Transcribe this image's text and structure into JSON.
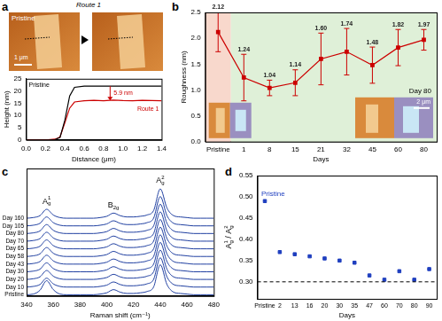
{
  "chart_data": [
    {
      "panel_label": "a",
      "type": "line",
      "image_arrow_label": "Route 1",
      "image_labels": [
        "Pristine"
      ],
      "scale_bar": "1 μm",
      "x": [
        0,
        0.1,
        0.2,
        0.3,
        0.35,
        0.4,
        0.45,
        0.5,
        0.6,
        0.7,
        0.8,
        0.9,
        1.0,
        1.1,
        1.2,
        1.3,
        1.4
      ],
      "series": [
        {
          "name": "Pristine",
          "color": "#000000",
          "values": [
            0,
            0,
            0,
            0.2,
            1,
            8,
            18,
            21.5,
            22,
            22,
            22,
            22,
            22,
            22,
            22,
            22,
            22
          ]
        },
        {
          "name": "Route 1",
          "color": "#cc0000",
          "values": [
            0,
            0,
            0,
            0.3,
            1.2,
            7,
            13,
            15.5,
            16,
            16.2,
            16,
            16.3,
            16.1,
            16,
            16.2,
            16.1,
            16
          ]
        }
      ],
      "x_label": "Distance (μm)",
      "y_label": "Height (nm)",
      "xlim": [
        0,
        1.4
      ],
      "xticks": [
        {
          "value": 0,
          "label": "0.0"
        },
        0.2,
        0.4,
        0.6,
        0.8,
        {
          "value": 1,
          "label": "1.0"
        },
        1.2,
        1.4
      ],
      "ylim": [
        0,
        25
      ],
      "yticks": [
        0,
        5,
        10,
        15,
        20,
        25
      ],
      "annotations": [
        {
          "text": "5.9 nm",
          "y_from": 22,
          "y_to": 16.1
        }
      ]
    },
    {
      "panel_label": "b",
      "type": "line",
      "categories": [
        "Pristine",
        "1",
        "8",
        "15",
        "21",
        "32",
        "45",
        "60",
        "80"
      ],
      "values": [
        2.12,
        1.24,
        1.04,
        1.14,
        1.6,
        1.74,
        1.48,
        1.82,
        1.97
      ],
      "value_labels": [
        "2.12",
        "1.24",
        "1.04",
        "1.14",
        "1.60",
        "1.74",
        "1.48",
        "1.82",
        "1.97"
      ],
      "errors": [
        0.38,
        0.45,
        0.15,
        0.25,
        0.5,
        0.45,
        0.35,
        0.35,
        0.2
      ],
      "color": "#cc0000",
      "marker": "square",
      "data_labels": true,
      "x_label": "Days",
      "y_label": "Roughness (nm)",
      "ylim": [
        0,
        2.5
      ],
      "yticks": [
        {
          "value": 0,
          "label": "0.0"
        },
        0.5,
        {
          "value": 1,
          "label": "1.0"
        },
        1.5,
        {
          "value": 2,
          "label": "2.0"
        },
        2.5
      ],
      "inset_label": "Day 80",
      "scale_bar": "2 μm"
    },
    {
      "panel_label": "c",
      "type": "line",
      "tick_labels": "x",
      "x": [
        340,
        345,
        350,
        355,
        360,
        365,
        370,
        375,
        380,
        385,
        390,
        395,
        400,
        405,
        410,
        415,
        420,
        425,
        430,
        435,
        440,
        445,
        450,
        455,
        460,
        465,
        470,
        475,
        480
      ],
      "series": [
        {
          "name": "Pristine",
          "color": "#1f3fa0",
          "values": [
            0.2,
            0.3,
            0.9,
            2.4,
            1.0,
            0.3,
            0.2,
            0.2,
            0.2,
            0.2,
            0.2,
            0.3,
            0.5,
            1.0,
            0.6,
            0.4,
            0.4,
            0.5,
            0.7,
            1.4,
            4.9,
            1.8,
            0.6,
            0.4,
            0.3,
            0.2,
            0.2,
            0.2,
            0.2
          ]
        },
        {
          "name": "Day 10",
          "color": "#1f3fa0",
          "values": [
            1.4,
            1.5,
            1.8,
            2.8,
            1.9,
            1.5,
            1.4,
            1.4,
            1.4,
            1.4,
            1.4,
            1.5,
            1.7,
            2.2,
            1.8,
            1.6,
            1.6,
            1.7,
            1.9,
            2.6,
            6.0,
            3.0,
            1.8,
            1.6,
            1.5,
            1.4,
            1.4,
            1.4,
            1.4
          ]
        },
        {
          "name": "Day 20",
          "color": "#1f3fa0",
          "values": [
            2.6,
            2.7,
            3.0,
            4.0,
            3.1,
            2.7,
            2.6,
            2.6,
            2.6,
            2.6,
            2.6,
            2.7,
            2.9,
            3.4,
            3.0,
            2.8,
            2.8,
            2.9,
            3.1,
            3.8,
            7.2,
            4.2,
            3.0,
            2.8,
            2.7,
            2.6,
            2.6,
            2.6,
            2.6
          ]
        },
        {
          "name": "Day 30",
          "color": "#1f3fa0",
          "values": [
            3.8,
            3.9,
            4.2,
            5.2,
            4.3,
            3.9,
            3.8,
            3.8,
            3.8,
            3.8,
            3.8,
            3.9,
            4.1,
            4.6,
            4.2,
            4.0,
            4.0,
            4.1,
            4.3,
            5.0,
            8.4,
            5.4,
            4.2,
            4.0,
            3.9,
            3.8,
            3.8,
            3.8,
            3.8
          ]
        },
        {
          "name": "Day 43",
          "color": "#1f3fa0",
          "values": [
            5.0,
            5.1,
            5.4,
            6.4,
            5.5,
            5.1,
            5.0,
            5.0,
            5.0,
            5.0,
            5.0,
            5.1,
            5.3,
            5.8,
            5.4,
            5.2,
            5.2,
            5.3,
            5.5,
            6.2,
            9.6,
            6.6,
            5.4,
            5.2,
            5.1,
            5.0,
            5.0,
            5.0,
            5.0
          ]
        },
        {
          "name": "Day 58",
          "color": "#1f3fa0",
          "values": [
            6.2,
            6.3,
            6.6,
            7.6,
            6.7,
            6.3,
            6.2,
            6.2,
            6.2,
            6.2,
            6.2,
            6.3,
            6.5,
            7.0,
            6.6,
            6.4,
            6.4,
            6.5,
            6.7,
            7.4,
            10.8,
            7.8,
            6.6,
            6.4,
            6.3,
            6.2,
            6.2,
            6.2,
            6.2
          ]
        },
        {
          "name": "Day 65",
          "color": "#1f3fa0",
          "values": [
            7.4,
            7.5,
            7.8,
            8.8,
            7.9,
            7.5,
            7.4,
            7.4,
            7.4,
            7.4,
            7.4,
            7.5,
            7.7,
            8.2,
            7.8,
            7.6,
            7.6,
            7.7,
            7.9,
            8.6,
            12.0,
            9.0,
            7.8,
            7.6,
            7.5,
            7.4,
            7.4,
            7.4,
            7.4
          ]
        },
        {
          "name": "Day 70",
          "color": "#1f3fa0",
          "values": [
            8.6,
            8.7,
            9.0,
            10.0,
            9.1,
            8.7,
            8.6,
            8.6,
            8.6,
            8.6,
            8.6,
            8.7,
            8.9,
            9.4,
            9.0,
            8.8,
            8.8,
            8.9,
            9.1,
            9.8,
            13.2,
            10.2,
            9.0,
            8.8,
            8.7,
            8.6,
            8.6,
            8.6,
            8.6
          ]
        },
        {
          "name": "Day 80",
          "color": "#1f3fa0",
          "values": [
            9.8,
            9.9,
            10.2,
            11.2,
            10.3,
            9.9,
            9.8,
            9.8,
            9.8,
            9.8,
            9.8,
            9.9,
            10.1,
            10.6,
            10.2,
            10.0,
            10.0,
            10.1,
            10.3,
            11.0,
            14.4,
            11.4,
            10.2,
            10.0,
            9.9,
            9.8,
            9.8,
            9.8,
            9.8
          ]
        },
        {
          "name": "Day 105",
          "color": "#1f3fa0",
          "values": [
            11.0,
            11.1,
            11.4,
            12.4,
            11.5,
            11.1,
            11.0,
            11.0,
            11.0,
            11.0,
            11.0,
            11.1,
            11.3,
            11.8,
            11.4,
            11.2,
            11.2,
            11.3,
            11.5,
            12.2,
            15.6,
            12.6,
            11.4,
            11.2,
            11.1,
            11.0,
            11.0,
            11.0,
            11.0
          ]
        },
        {
          "name": "Day 160",
          "color": "#1f3fa0",
          "values": [
            12.2,
            12.3,
            12.6,
            13.6,
            12.7,
            12.3,
            12.2,
            12.2,
            12.2,
            12.2,
            12.2,
            12.3,
            12.5,
            13.0,
            12.6,
            12.4,
            12.4,
            12.5,
            12.7,
            13.4,
            16.8,
            13.8,
            12.6,
            12.4,
            12.3,
            12.2,
            12.2,
            12.2,
            12.2
          ]
        }
      ],
      "x_label": "Raman shift (cm⁻¹)",
      "xlim": [
        340,
        480
      ],
      "xticks": [
        340,
        360,
        380,
        400,
        420,
        440,
        460,
        480
      ],
      "ylim": [
        0,
        20
      ],
      "peak_labels": [
        {
          "text": "A",
          "sub": "g",
          "sup": "1",
          "x": 355
        },
        {
          "text": "B",
          "sub": "2g",
          "x": 405
        },
        {
          "text": "A",
          "sub": "g",
          "sup": "2",
          "x": 440
        }
      ]
    },
    {
      "panel_label": "d",
      "type": "scatter",
      "categories": [
        "Pristine",
        "2",
        "13",
        "16",
        "20",
        "30",
        "35",
        "47",
        "60",
        "70",
        "80",
        "90"
      ],
      "values": [
        0.49,
        0.37,
        0.365,
        0.36,
        0.355,
        0.35,
        0.345,
        0.315,
        0.305,
        0.325,
        0.305,
        0.33
      ],
      "color": "#1f3fbf",
      "marker": "square",
      "x_label": "Days",
      "y_label": [
        {
          "text": "A",
          "sub": "g",
          "sup": "1"
        },
        {
          "text": " / "
        },
        {
          "text": "A",
          "sub": "g",
          "sup": "2"
        }
      ],
      "ylim": [
        0.26,
        0.55
      ],
      "yticks": [
        {
          "value": 0.3,
          "label": "0.30"
        },
        0.35,
        {
          "value": 0.4,
          "label": "0.40"
        },
        0.45,
        {
          "value": 0.5,
          "label": "0.50"
        },
        0.55
      ],
      "hline": {
        "value": 0.3,
        "line_style": "dashed"
      },
      "annotations": [
        {
          "text": "Pristine",
          "category": "Pristine"
        }
      ]
    }
  ]
}
